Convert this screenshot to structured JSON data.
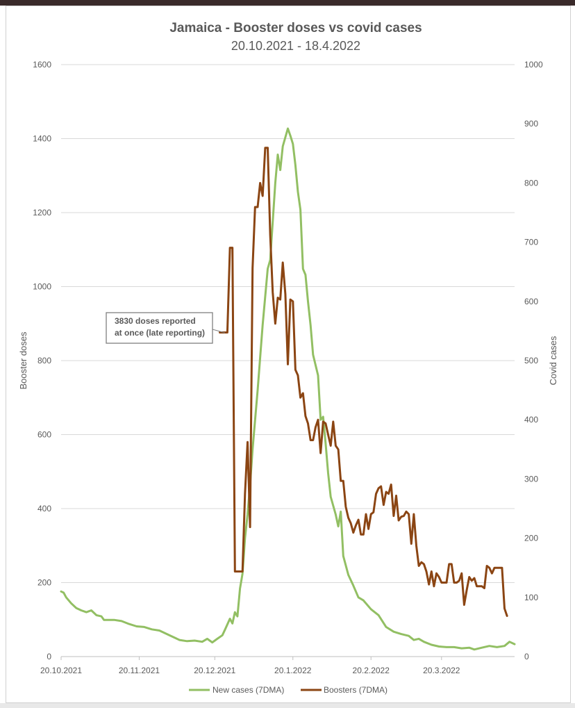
{
  "chart_data": {
    "type": "line",
    "title": "Jamaica - Booster doses vs covid cases",
    "subtitle": "20.10.2021 - 18.4.2022",
    "ylabel_left": "Booster doses",
    "ylabel_right": "Covid cases",
    "ylim_left": [
      0,
      1600
    ],
    "ylim_right": [
      0,
      1000
    ],
    "yticks_left": [
      "0",
      "200",
      "400",
      "600",
      "800",
      "1000",
      "1200",
      "1400",
      "1600"
    ],
    "yticks_right": [
      "0",
      "100",
      "200",
      "300",
      "400",
      "500",
      "600",
      "700",
      "800",
      "900",
      "1000"
    ],
    "xticks": [
      "20.10.2021",
      "20.11.2021",
      "20.12.2021",
      "20.1.2022",
      "20.2.2022",
      "20.3.2022"
    ],
    "x_start": "2021-10-20",
    "x_end": "2022-04-18",
    "grid": true,
    "legend_position": "bottom",
    "annotation": {
      "lines": [
        "3830 doses reported",
        "at once (late reporting)"
      ],
      "points_to": {
        "date": "2021-12-26",
        "value": 875,
        "axis": "left"
      }
    },
    "series": [
      {
        "name": "New cases (7DMA)",
        "axis": "right",
        "color": "#92bf63",
        "points": [
          [
            "2021-10-20",
            110
          ],
          [
            "2021-10-21",
            108
          ],
          [
            "2021-10-22",
            100
          ],
          [
            "2021-10-24",
            90
          ],
          [
            "2021-10-26",
            82
          ],
          [
            "2021-10-28",
            78
          ],
          [
            "2021-10-30",
            75
          ],
          [
            "2021-11-01",
            78
          ],
          [
            "2021-11-03",
            70
          ],
          [
            "2021-11-05",
            68
          ],
          [
            "2021-11-06",
            62
          ],
          [
            "2021-11-10",
            62
          ],
          [
            "2021-11-13",
            60
          ],
          [
            "2021-11-16",
            55
          ],
          [
            "2021-11-19",
            51
          ],
          [
            "2021-11-22",
            50
          ],
          [
            "2021-11-25",
            46
          ],
          [
            "2021-11-28",
            44
          ],
          [
            "2021-11-30",
            40
          ],
          [
            "2021-12-03",
            34
          ],
          [
            "2021-12-06",
            28
          ],
          [
            "2021-12-09",
            26
          ],
          [
            "2021-12-12",
            27
          ],
          [
            "2021-12-15",
            25
          ],
          [
            "2021-12-17",
            30
          ],
          [
            "2021-12-19",
            24
          ],
          [
            "2021-12-21",
            30
          ],
          [
            "2021-12-23",
            36
          ],
          [
            "2021-12-24",
            45
          ],
          [
            "2021-12-26",
            64
          ],
          [
            "2021-12-27",
            56
          ],
          [
            "2021-12-28",
            75
          ],
          [
            "2021-12-29",
            68
          ],
          [
            "2021-12-30",
            115
          ],
          [
            "2021-12-31",
            140
          ],
          [
            "2022-01-01",
            200
          ],
          [
            "2022-01-02",
            240
          ],
          [
            "2022-01-03",
            290
          ],
          [
            "2022-01-04",
            350
          ],
          [
            "2022-01-06",
            450
          ],
          [
            "2022-01-08",
            560
          ],
          [
            "2022-01-10",
            655
          ],
          [
            "2022-01-11",
            670
          ],
          [
            "2022-01-13",
            800
          ],
          [
            "2022-01-14",
            848
          ],
          [
            "2022-01-15",
            822
          ],
          [
            "2022-01-16",
            862
          ],
          [
            "2022-01-18",
            892
          ],
          [
            "2022-01-19",
            880
          ],
          [
            "2022-01-20",
            866
          ],
          [
            "2022-01-21",
            830
          ],
          [
            "2022-01-22",
            785
          ],
          [
            "2022-01-23",
            755
          ],
          [
            "2022-01-24",
            655
          ],
          [
            "2022-01-25",
            645
          ],
          [
            "2022-01-26",
            600
          ],
          [
            "2022-01-27",
            560
          ],
          [
            "2022-01-28",
            510
          ],
          [
            "2022-01-30",
            475
          ],
          [
            "2022-01-31",
            400
          ],
          [
            "2022-02-01",
            405
          ],
          [
            "2022-02-02",
            360
          ],
          [
            "2022-02-03",
            310
          ],
          [
            "2022-02-04",
            270
          ],
          [
            "2022-02-06",
            240
          ],
          [
            "2022-02-07",
            220
          ],
          [
            "2022-02-08",
            245
          ],
          [
            "2022-02-09",
            170
          ],
          [
            "2022-02-11",
            138
          ],
          [
            "2022-02-13",
            120
          ],
          [
            "2022-02-15",
            100
          ],
          [
            "2022-02-17",
            95
          ],
          [
            "2022-02-20",
            80
          ],
          [
            "2022-02-23",
            70
          ],
          [
            "2022-02-26",
            50
          ],
          [
            "2022-03-01",
            42
          ],
          [
            "2022-03-04",
            38
          ],
          [
            "2022-03-07",
            35
          ],
          [
            "2022-03-09",
            28
          ],
          [
            "2022-03-11",
            30
          ],
          [
            "2022-03-13",
            25
          ],
          [
            "2022-03-16",
            20
          ],
          [
            "2022-03-19",
            17
          ],
          [
            "2022-03-22",
            16
          ],
          [
            "2022-03-25",
            16
          ],
          [
            "2022-03-28",
            14
          ],
          [
            "2022-03-31",
            15
          ],
          [
            "2022-04-02",
            12
          ],
          [
            "2022-04-05",
            15
          ],
          [
            "2022-04-08",
            18
          ],
          [
            "2022-04-11",
            16
          ],
          [
            "2022-04-14",
            18
          ],
          [
            "2022-04-16",
            25
          ],
          [
            "2022-04-18",
            21
          ]
        ]
      },
      {
        "name": "Boosters (7DMA)",
        "axis": "left",
        "color": "#8b4513",
        "points": [
          [
            "2021-12-22",
            876
          ],
          [
            "2021-12-23",
            876
          ],
          [
            "2021-12-24",
            876
          ],
          [
            "2021-12-25",
            876
          ],
          [
            "2021-12-26",
            1105
          ],
          [
            "2021-12-27",
            1105
          ],
          [
            "2021-12-28",
            230
          ],
          [
            "2021-12-29",
            230
          ],
          [
            "2021-12-30",
            230
          ],
          [
            "2021-12-31",
            230
          ],
          [
            "2022-01-01",
            440
          ],
          [
            "2022-01-02",
            580
          ],
          [
            "2022-01-03",
            350
          ],
          [
            "2022-01-04",
            1050
          ],
          [
            "2022-01-05",
            1215
          ],
          [
            "2022-01-06",
            1215
          ],
          [
            "2022-01-07",
            1280
          ],
          [
            "2022-01-08",
            1245
          ],
          [
            "2022-01-09",
            1375
          ],
          [
            "2022-01-10",
            1375
          ],
          [
            "2022-01-11",
            1140
          ],
          [
            "2022-01-12",
            985
          ],
          [
            "2022-01-13",
            900
          ],
          [
            "2022-01-14",
            970
          ],
          [
            "2022-01-15",
            965
          ],
          [
            "2022-01-16",
            1065
          ],
          [
            "2022-01-17",
            980
          ],
          [
            "2022-01-18",
            790
          ],
          [
            "2022-01-19",
            965
          ],
          [
            "2022-01-20",
            960
          ],
          [
            "2022-01-21",
            775
          ],
          [
            "2022-01-22",
            760
          ],
          [
            "2022-01-23",
            700
          ],
          [
            "2022-01-24",
            712
          ],
          [
            "2022-01-25",
            650
          ],
          [
            "2022-01-26",
            630
          ],
          [
            "2022-01-27",
            585
          ],
          [
            "2022-01-28",
            585
          ],
          [
            "2022-01-29",
            620
          ],
          [
            "2022-01-30",
            640
          ],
          [
            "2022-01-31",
            550
          ],
          [
            "2022-02-01",
            635
          ],
          [
            "2022-02-02",
            630
          ],
          [
            "2022-02-03",
            600
          ],
          [
            "2022-02-04",
            570
          ],
          [
            "2022-02-05",
            635
          ],
          [
            "2022-02-06",
            570
          ],
          [
            "2022-02-07",
            560
          ],
          [
            "2022-02-08",
            475
          ],
          [
            "2022-02-09",
            475
          ],
          [
            "2022-02-10",
            405
          ],
          [
            "2022-02-11",
            375
          ],
          [
            "2022-02-12",
            360
          ],
          [
            "2022-02-13",
            335
          ],
          [
            "2022-02-14",
            355
          ],
          [
            "2022-02-15",
            370
          ],
          [
            "2022-02-16",
            330
          ],
          [
            "2022-02-17",
            330
          ],
          [
            "2022-02-18",
            385
          ],
          [
            "2022-02-19",
            345
          ],
          [
            "2022-02-20",
            385
          ],
          [
            "2022-02-21",
            390
          ],
          [
            "2022-02-22",
            440
          ],
          [
            "2022-02-23",
            455
          ],
          [
            "2022-02-24",
            460
          ],
          [
            "2022-02-25",
            410
          ],
          [
            "2022-02-26",
            445
          ],
          [
            "2022-02-27",
            440
          ],
          [
            "2022-02-28",
            465
          ],
          [
            "2022-03-01",
            380
          ],
          [
            "2022-03-02",
            435
          ],
          [
            "2022-03-03",
            368
          ],
          [
            "2022-03-04",
            378
          ],
          [
            "2022-03-05",
            380
          ],
          [
            "2022-03-06",
            392
          ],
          [
            "2022-03-07",
            385
          ],
          [
            "2022-03-08",
            305
          ],
          [
            "2022-03-09",
            385
          ],
          [
            "2022-03-10",
            300
          ],
          [
            "2022-03-11",
            245
          ],
          [
            "2022-03-12",
            255
          ],
          [
            "2022-03-13",
            250
          ],
          [
            "2022-03-14",
            230
          ],
          [
            "2022-03-15",
            195
          ],
          [
            "2022-03-16",
            230
          ],
          [
            "2022-03-17",
            190
          ],
          [
            "2022-03-18",
            225
          ],
          [
            "2022-03-19",
            215
          ],
          [
            "2022-03-20",
            200
          ],
          [
            "2022-03-22",
            200
          ],
          [
            "2022-03-23",
            250
          ],
          [
            "2022-03-24",
            250
          ],
          [
            "2022-03-25",
            200
          ],
          [
            "2022-03-26",
            200
          ],
          [
            "2022-03-27",
            205
          ],
          [
            "2022-03-28",
            225
          ],
          [
            "2022-03-29",
            140
          ],
          [
            "2022-03-30",
            180
          ],
          [
            "2022-03-31",
            215
          ],
          [
            "2022-04-01",
            205
          ],
          [
            "2022-04-02",
            212
          ],
          [
            "2022-04-03",
            190
          ],
          [
            "2022-04-04",
            190
          ],
          [
            "2022-04-05",
            190
          ],
          [
            "2022-04-06",
            185
          ],
          [
            "2022-04-07",
            245
          ],
          [
            "2022-04-08",
            240
          ],
          [
            "2022-04-09",
            225
          ],
          [
            "2022-04-10",
            240
          ],
          [
            "2022-04-11",
            240
          ],
          [
            "2022-04-12",
            240
          ],
          [
            "2022-04-13",
            240
          ],
          [
            "2022-04-14",
            130
          ],
          [
            "2022-04-15",
            110
          ]
        ]
      }
    ]
  }
}
